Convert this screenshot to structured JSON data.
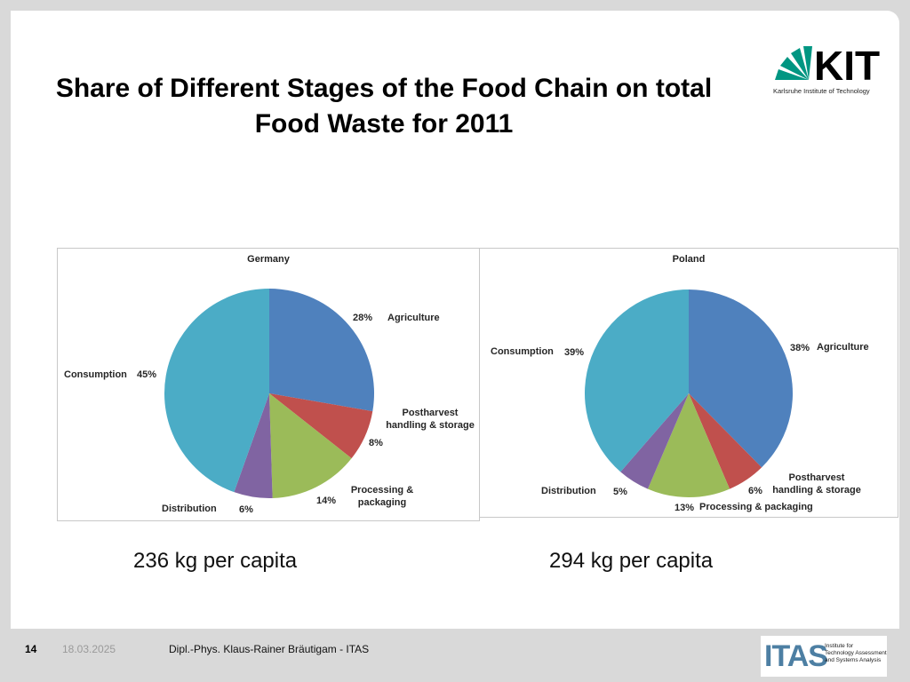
{
  "slide": {
    "title": "Share of Different Stages of the Food Chain on total Food Waste for 2011",
    "logo_text": "KIT",
    "logo_subtitle": "Karlsruhe Institute of Technology",
    "page_number": "14",
    "date": "18.03.2025",
    "author": "Dipl.-Phys. Klaus-Rainer Bräutigam - ITAS",
    "itas_logo": "ITAS",
    "itas_logo_lines": [
      "Institute for",
      "Technology Assessment",
      "and Systems Analysis"
    ],
    "germany_capita": "236 kg per capita",
    "poland_capita": "294 kg per capita"
  },
  "colors": {
    "agriculture": "#4f81bd",
    "postharvest": "#c0504d",
    "processing": "#9bbb59",
    "distribution": "#8064a2",
    "consumption": "#4bacc6"
  },
  "chart_data": [
    {
      "type": "pie",
      "title": "Germany",
      "categories": [
        "Agriculture",
        "Postharvest handling & storage",
        "Processing & packaging",
        "Distribution",
        "Consumption"
      ],
      "values": [
        28,
        8,
        14,
        6,
        45
      ],
      "labels": [
        "28%",
        "8%",
        "14%",
        "6%",
        "45%"
      ],
      "label_text": {
        "agriculture": "Agriculture",
        "postharvest_1": "Postharvest",
        "postharvest_2": "handling & storage",
        "processing_1": "Processing &",
        "processing_2": "packaging",
        "distribution": "Distribution",
        "consumption": "Consumption"
      }
    },
    {
      "type": "pie",
      "title": "Poland",
      "categories": [
        "Agriculture",
        "Postharvest handling & storage",
        "Processing & packaging",
        "Distribution",
        "Consumption"
      ],
      "values": [
        38,
        6,
        13,
        5,
        39
      ],
      "labels": [
        "38%",
        "6%",
        "13%",
        "5%",
        "39%"
      ],
      "label_text": {
        "agriculture": "Agriculture",
        "postharvest_1": "Postharvest",
        "postharvest_2": "handling & storage",
        "processing": "Processing & packaging",
        "distribution": "Distribution",
        "consumption": "Consumption"
      }
    }
  ]
}
